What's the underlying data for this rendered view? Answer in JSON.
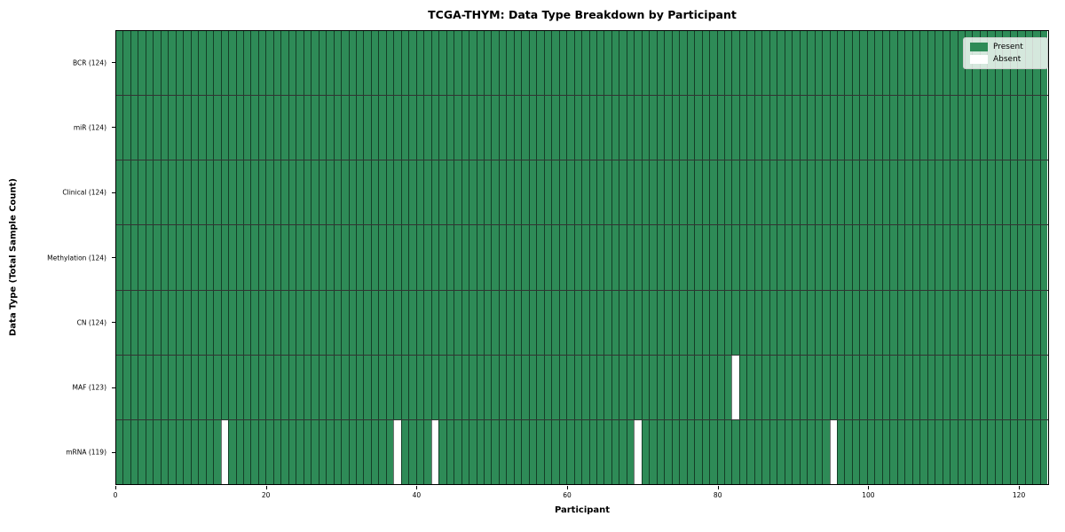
{
  "figure": {
    "title": "TCGA-THYM: Data Type Breakdown by Participant",
    "xlabel": "Participant",
    "ylabel": "Data Type (Total Sample Count)"
  },
  "legend": {
    "position": "upper right",
    "items": [
      {
        "name": "present",
        "label": "Present",
        "color": "#2e8b57"
      },
      {
        "name": "absent",
        "label": "Absent",
        "color": "#ffffff"
      }
    ]
  },
  "chart_data": {
    "type": "heatmap",
    "title": "TCGA-THYM: Data Type Breakdown by Participant",
    "xlabel": "Participant",
    "ylabel": "Data Type (Total Sample Count)",
    "x_range": [
      0,
      124
    ],
    "x_ticks": [
      0,
      20,
      40,
      60,
      80,
      100,
      120
    ],
    "n_participants": 124,
    "categories": [
      "BCR (124)",
      "miR (124)",
      "Clinical (124)",
      "Methylation (124)",
      "CN (124)",
      "MAF (123)",
      "mRNA (119)"
    ],
    "rows": [
      {
        "data_type": "BCR",
        "label": "BCR (124)",
        "total_samples": 124,
        "absent_participants": []
      },
      {
        "data_type": "miR",
        "label": "miR (124)",
        "total_samples": 124,
        "absent_participants": []
      },
      {
        "data_type": "Clinical",
        "label": "Clinical (124)",
        "total_samples": 124,
        "absent_participants": []
      },
      {
        "data_type": "Methylation",
        "label": "Methylation (124)",
        "total_samples": 124,
        "absent_participants": []
      },
      {
        "data_type": "CN",
        "label": "CN (124)",
        "total_samples": 124,
        "absent_participants": []
      },
      {
        "data_type": "MAF",
        "label": "MAF (123)",
        "total_samples": 123,
        "absent_participants": [
          82
        ]
      },
      {
        "data_type": "mRNA",
        "label": "mRNA (119)",
        "total_samples": 119,
        "absent_participants": [
          14,
          37,
          42,
          69,
          95
        ]
      }
    ],
    "legend_entries": [
      "Present",
      "Absent"
    ],
    "colors": {
      "present": "#2e8b57",
      "absent": "#ffffff"
    },
    "grid": false
  }
}
